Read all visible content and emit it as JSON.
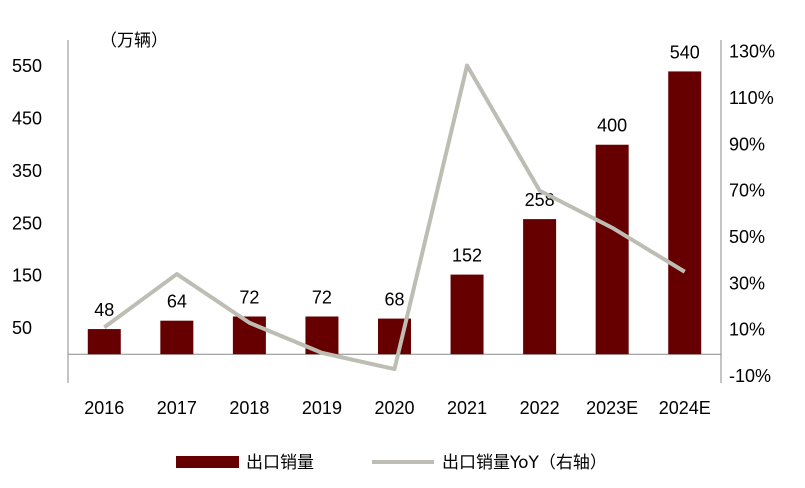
{
  "chart_data": {
    "type": "bar+line",
    "unit_label": "（万辆）",
    "categories": [
      "2016",
      "2017",
      "2018",
      "2019",
      "2020",
      "2021",
      "2022",
      "2023E",
      "2024E"
    ],
    "series": [
      {
        "name": "出口销量",
        "type": "bar",
        "axis": "left",
        "color": "#660000",
        "values": [
          48,
          64,
          72,
          72,
          68,
          152,
          258,
          400,
          540
        ],
        "data_labels": [
          "48",
          "64",
          "72",
          "72",
          "68",
          "152",
          "258",
          "400",
          "540"
        ]
      },
      {
        "name": "出口销量YoY（右轴",
        "type": "line",
        "axis": "right",
        "color": "#bdbdb4",
        "values_pct": [
          11,
          34,
          13,
          0,
          -7,
          124,
          70,
          54,
          35
        ]
      }
    ],
    "left_axis": {
      "range": [
        -55,
        600
      ],
      "ticks": [
        50,
        150,
        250,
        350,
        450,
        550
      ],
      "tick_labels": [
        "50",
        "150",
        "250",
        "350",
        "450",
        "550"
      ]
    },
    "right_axis": {
      "range": [
        -13,
        135
      ],
      "ticks": [
        -10,
        10,
        30,
        50,
        70,
        90,
        110,
        130
      ],
      "tick_labels": [
        "-10%",
        "10%",
        "30%",
        "50%",
        "70%",
        "90%",
        "110%",
        "130%"
      ]
    },
    "legend": {
      "position": "bottom",
      "entries": [
        "出口销量",
        "出口销量YoY（右轴"
      ],
      "closing_bracket": "）"
    }
  }
}
